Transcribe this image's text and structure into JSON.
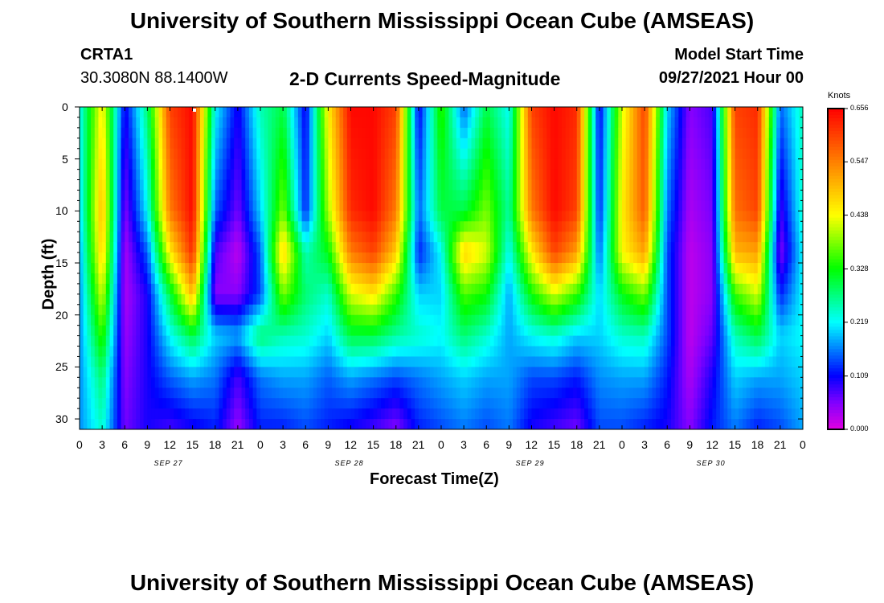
{
  "header": {
    "title": "University of Southern Mississippi Ocean Cube (AMSEAS)",
    "station_id": "CRTA1",
    "station_coords": "30.3080N  88.1400W",
    "plot_name": "2-D Currents Speed-Magnitude",
    "model_start_label": "Model Start Time",
    "model_start_value": "09/27/2021 Hour 00"
  },
  "footer": {
    "title": "University of Southern Mississippi Ocean Cube (AMSEAS)"
  },
  "chart_data": {
    "type": "heatmap",
    "xlabel": "Forecast Time(Z)",
    "ylabel": "Depth (ft)",
    "colorbar_label": "Knots",
    "x_tick_labels": [
      "0",
      "3",
      "6",
      "9",
      "12",
      "15",
      "18",
      "21",
      "0",
      "3",
      "6",
      "9",
      "12",
      "15",
      "18",
      "21",
      "0",
      "3",
      "6",
      "9",
      "12",
      "15",
      "18",
      "21",
      "0",
      "3",
      "6",
      "9",
      "12",
      "15",
      "18",
      "21",
      "0"
    ],
    "x_date_labels": [
      "SEP 27",
      "SEP 28",
      "SEP 29",
      "SEP 30"
    ],
    "x_range_hours": [
      0,
      96
    ],
    "y_tick_labels": [
      "0",
      "5",
      "10",
      "15",
      "20",
      "25",
      "30"
    ],
    "y_range_ft": [
      0,
      31
    ],
    "y_inverted": true,
    "colorbar_ticks": [
      "0.000",
      "0.109",
      "0.219",
      "0.328",
      "0.438",
      "0.547",
      "0.656"
    ],
    "value_range_knots": [
      0.0,
      0.656
    ],
    "colormap": [
      "#e000e0",
      "#8000ff",
      "#0000ff",
      "#0080ff",
      "#00ffff",
      "#00ff80",
      "#00ff00",
      "#80ff00",
      "#ffff00",
      "#ffc000",
      "#ff8000",
      "#ff4000",
      "#ff0000"
    ],
    "depth_levels_ft": [
      0,
      10,
      14,
      18,
      22,
      26,
      31
    ],
    "time_hours": [
      0,
      3,
      6,
      9,
      12,
      15,
      18,
      21,
      24,
      27,
      30,
      33,
      36,
      39,
      42,
      45,
      48,
      51,
      54,
      57,
      60,
      63,
      66,
      69,
      72,
      75,
      78,
      81,
      84,
      87,
      90,
      93,
      96
    ],
    "speed_knots": [
      [
        0.22,
        0.2,
        0.18,
        0.17,
        0.17,
        0.17,
        0.17
      ],
      [
        0.45,
        0.5,
        0.48,
        0.42,
        0.35,
        0.28,
        0.24
      ],
      [
        0.1,
        0.05,
        0.03,
        0.03,
        0.04,
        0.05,
        0.06
      ],
      [
        0.28,
        0.22,
        0.15,
        0.1,
        0.1,
        0.1,
        0.1
      ],
      [
        0.6,
        0.55,
        0.45,
        0.3,
        0.22,
        0.15,
        0.08
      ],
      [
        0.65,
        0.65,
        0.62,
        0.5,
        0.3,
        0.18,
        0.1
      ],
      [
        0.22,
        0.15,
        0.08,
        0.05,
        0.2,
        0.16,
        0.12
      ],
      [
        0.1,
        0.06,
        0.02,
        0.05,
        0.18,
        0.08,
        0.04
      ],
      [
        0.25,
        0.2,
        0.15,
        0.14,
        0.28,
        0.16,
        0.12
      ],
      [
        0.3,
        0.38,
        0.48,
        0.38,
        0.25,
        0.18,
        0.12
      ],
      [
        0.1,
        0.12,
        0.25,
        0.28,
        0.24,
        0.18,
        0.14
      ],
      [
        0.45,
        0.4,
        0.32,
        0.24,
        0.2,
        0.15,
        0.12
      ],
      [
        0.65,
        0.62,
        0.55,
        0.42,
        0.3,
        0.18,
        0.1
      ],
      [
        0.65,
        0.65,
        0.6,
        0.46,
        0.3,
        0.16,
        0.08
      ],
      [
        0.6,
        0.55,
        0.48,
        0.35,
        0.26,
        0.14,
        0.05
      ],
      [
        0.1,
        0.15,
        0.12,
        0.2,
        0.24,
        0.16,
        0.12
      ],
      [
        0.35,
        0.3,
        0.22,
        0.2,
        0.22,
        0.18,
        0.14
      ],
      [
        0.15,
        0.3,
        0.48,
        0.36,
        0.28,
        0.2,
        0.16
      ],
      [
        0.3,
        0.38,
        0.42,
        0.33,
        0.24,
        0.18,
        0.14
      ],
      [
        0.22,
        0.26,
        0.22,
        0.18,
        0.18,
        0.18,
        0.16
      ],
      [
        0.6,
        0.55,
        0.45,
        0.33,
        0.22,
        0.14,
        0.1
      ],
      [
        0.65,
        0.65,
        0.6,
        0.42,
        0.24,
        0.14,
        0.08
      ],
      [
        0.62,
        0.6,
        0.52,
        0.35,
        0.2,
        0.12,
        0.06
      ],
      [
        0.1,
        0.12,
        0.15,
        0.2,
        0.2,
        0.17,
        0.14
      ],
      [
        0.42,
        0.45,
        0.44,
        0.32,
        0.24,
        0.18,
        0.14
      ],
      [
        0.6,
        0.58,
        0.52,
        0.38,
        0.25,
        0.18,
        0.12
      ],
      [
        0.2,
        0.16,
        0.14,
        0.14,
        0.14,
        0.12,
        0.1
      ],
      [
        0.05,
        0.03,
        0.02,
        0.02,
        0.02,
        0.03,
        0.05
      ],
      [
        0.08,
        0.06,
        0.05,
        0.05,
        0.07,
        0.1,
        0.12
      ],
      [
        0.6,
        0.56,
        0.5,
        0.35,
        0.25,
        0.2,
        0.16
      ],
      [
        0.62,
        0.6,
        0.52,
        0.42,
        0.3,
        0.18,
        0.12
      ],
      [
        0.15,
        0.08,
        0.05,
        0.12,
        0.2,
        0.18,
        0.14
      ],
      [
        0.25,
        0.24,
        0.22,
        0.22,
        0.22,
        0.2,
        0.18
      ]
    ]
  }
}
